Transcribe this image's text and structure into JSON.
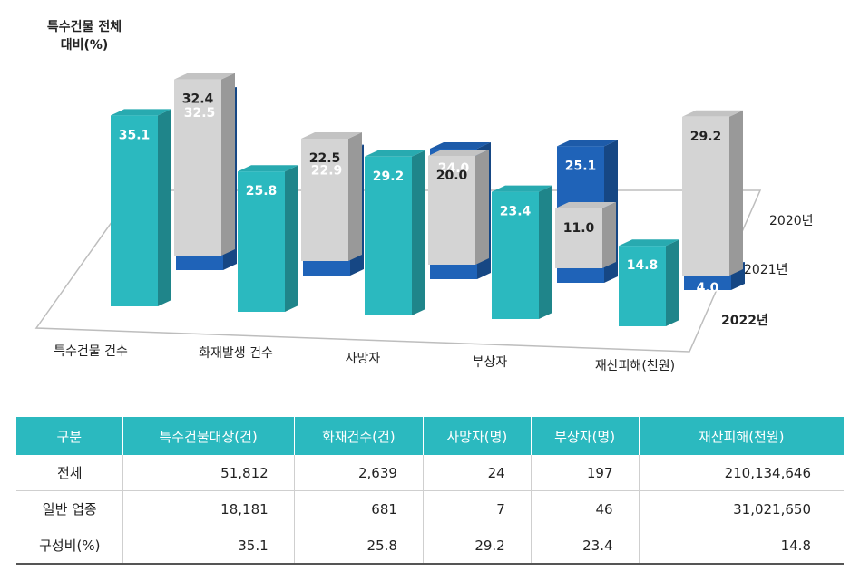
{
  "chart_data": {
    "type": "bar",
    "ylabel": "특수건물 전체\n대비(%)",
    "categories": [
      "특수건물 건수",
      "화재발생 건수",
      "사망자",
      "부상자",
      "재산피해(천원)"
    ],
    "series": [
      {
        "name": "2020년",
        "values": [
          32.5,
          22.9,
          24.0,
          25.1,
          4.0
        ],
        "color": "#1f63b8"
      },
      {
        "name": "2021년",
        "values": [
          32.4,
          22.5,
          20.0,
          11.0,
          29.2
        ],
        "color": "#d4d4d4"
      },
      {
        "name": "2022년",
        "values": [
          35.1,
          25.8,
          29.2,
          23.4,
          14.8
        ],
        "color": "#2bb9bf"
      }
    ],
    "legend_position": "right",
    "ylim": [
      0,
      40
    ]
  },
  "table": {
    "headers": [
      "구분",
      "특수건물대상(건)",
      "화재건수(건)",
      "사망자(명)",
      "부상자(명)",
      "재산피해(천원)"
    ],
    "rows": [
      [
        "전체",
        "51,812",
        "2,639",
        "24",
        "197",
        "210,134,646"
      ],
      [
        "일반 업종",
        "18,181",
        "681",
        "7",
        "46",
        "31,021,650"
      ],
      [
        "구성비(%)",
        "35.1",
        "25.8",
        "29.2",
        "23.4",
        "14.8"
      ]
    ]
  }
}
